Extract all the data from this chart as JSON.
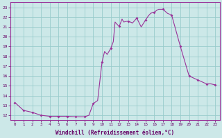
{
  "title": "",
  "xlabel": "Windchill (Refroidissement éolien,°C)",
  "ylabel": "",
  "background_color": "#cce8e8",
  "grid_color": "#99cccc",
  "line_color": "#993399",
  "marker_color": "#993399",
  "xlim": [
    -0.5,
    23.5
  ],
  "ylim": [
    11.5,
    23.5
  ],
  "yticks": [
    12,
    13,
    14,
    15,
    16,
    17,
    18,
    19,
    20,
    21,
    22,
    23
  ],
  "xticks": [
    0,
    1,
    2,
    3,
    4,
    5,
    6,
    7,
    8,
    9,
    10,
    11,
    12,
    13,
    14,
    15,
    16,
    17,
    18,
    19,
    20,
    21,
    22,
    23
  ],
  "x": [
    0,
    1,
    2,
    3,
    4,
    5,
    6,
    7,
    8,
    8.5,
    9,
    9.5,
    10,
    10.3,
    10.6,
    11,
    11.3,
    11.5,
    11.8,
    12,
    12.3,
    12.5,
    13,
    13.5,
    14,
    14.5,
    15,
    15.3,
    15.6,
    16,
    16.3,
    16.5,
    17,
    17.5,
    18,
    19,
    20,
    21,
    22,
    22.5,
    23
  ],
  "y": [
    13.3,
    12.5,
    12.3,
    12.0,
    11.9,
    11.9,
    11.9,
    11.85,
    11.85,
    12.0,
    13.2,
    13.5,
    17.4,
    18.5,
    18.2,
    18.8,
    19.5,
    21.5,
    21.2,
    21.1,
    21.8,
    21.5,
    21.6,
    21.4,
    21.9,
    21.0,
    21.7,
    22.1,
    22.4,
    22.5,
    22.7,
    22.8,
    22.8,
    22.4,
    22.2,
    19.0,
    16.0,
    15.6,
    15.2,
    15.2,
    15.1
  ],
  "marker_x": [
    0,
    1,
    2,
    3,
    4,
    5,
    6,
    7,
    8,
    9,
    10,
    11,
    12,
    13,
    14,
    15,
    16,
    17,
    18,
    19,
    20,
    21,
    22,
    23
  ],
  "marker_y": [
    13.3,
    12.5,
    12.3,
    12.0,
    11.9,
    11.9,
    11.9,
    11.85,
    11.85,
    13.2,
    17.4,
    18.8,
    21.1,
    21.6,
    21.9,
    21.7,
    22.5,
    22.8,
    22.2,
    19.0,
    16.0,
    15.6,
    15.2,
    15.1
  ],
  "label_fontsize": 5.5,
  "tick_fontsize": 5.0
}
